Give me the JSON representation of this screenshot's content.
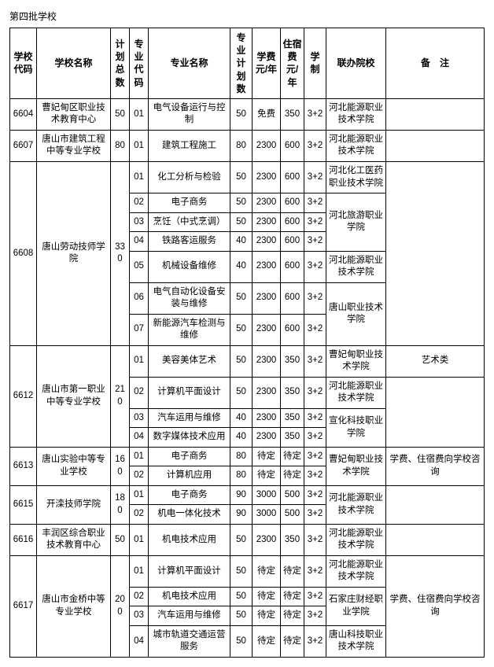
{
  "title": "第四批学校",
  "headers": {
    "code": "学校代码",
    "name": "学校名称",
    "totalPlan": "计划总数",
    "majorCode": "专业代码",
    "majorName": "专业名称",
    "majorPlan": "专业计划数",
    "tuition": "学费 元/年",
    "dorm": "住宿费 元/年",
    "system": "学制",
    "partner": "联办院校",
    "note": "备　注"
  },
  "schools": [
    {
      "code": "6604",
      "name": "曹妃甸区职业技术教育中心",
      "totalPlan": 50,
      "majors": [
        {
          "mcode": "01",
          "mname": "电气设备运行与控制",
          "mplan": 50,
          "fee": "免费",
          "dorm": 350,
          "sys": "3+2",
          "partner": "河北能源职业技术学院",
          "partnerSpan": 1
        }
      ],
      "note": ""
    },
    {
      "code": "6607",
      "name": "唐山市建筑工程中等专业学校",
      "totalPlan": 80,
      "majors": [
        {
          "mcode": "01",
          "mname": "建筑工程施工",
          "mplan": 80,
          "fee": 2300,
          "dorm": 600,
          "sys": "3+2",
          "partner": "河北能源职业技术学院",
          "partnerSpan": 1
        }
      ],
      "note": ""
    },
    {
      "code": "6608",
      "name": "唐山劳动技师学院",
      "totalPlan": 330,
      "majors": [
        {
          "mcode": "01",
          "mname": "化工分析与检验",
          "mplan": 50,
          "fee": 2300,
          "dorm": 600,
          "sys": "3+2",
          "partner": "河北化工医药职业技术学院",
          "partnerSpan": 1
        },
        {
          "mcode": "02",
          "mname": "电子商务",
          "mplan": 50,
          "fee": 2300,
          "dorm": 600,
          "sys": "3+2",
          "partner": "河北旅游职业学院",
          "partnerSpan": 3
        },
        {
          "mcode": "03",
          "mname": "烹饪（中式烹调）",
          "mplan": 50,
          "fee": 2300,
          "dorm": 600,
          "sys": "3+2"
        },
        {
          "mcode": "04",
          "mname": "铁路客运服务",
          "mplan": 40,
          "fee": 2300,
          "dorm": 600,
          "sys": "3+2"
        },
        {
          "mcode": "05",
          "mname": "机械设备维修",
          "mplan": 40,
          "fee": 2300,
          "dorm": 600,
          "sys": "3+2",
          "partner": "河北能源职业技术学院",
          "partnerSpan": 1
        },
        {
          "mcode": "06",
          "mname": "电气自动化设备安装与维修",
          "mplan": 50,
          "fee": 2300,
          "dorm": 600,
          "sys": "3+2",
          "partner": "唐山职业技术学院",
          "partnerSpan": 2
        },
        {
          "mcode": "07",
          "mname": "新能源汽车检测与维修",
          "mplan": 50,
          "fee": 2300,
          "dorm": 600,
          "sys": "3+2"
        }
      ],
      "note": ""
    },
    {
      "code": "6612",
      "name": "唐山市第一职业中等专业学校",
      "totalPlan": 210,
      "majors": [
        {
          "mcode": "01",
          "mname": "美容美体艺术",
          "mplan": 50,
          "fee": 2300,
          "dorm": 350,
          "sys": "3+2",
          "partner": "曹妃甸职业技术学院",
          "partnerSpan": 1,
          "note": "艺术类",
          "noteSpan": 1
        },
        {
          "mcode": "02",
          "mname": "计算机平面设计",
          "mplan": 50,
          "fee": 2300,
          "dorm": 350,
          "sys": "3+2",
          "partner": "河北能源职业技术学院",
          "partnerSpan": 1,
          "note": "",
          "noteSpan": 3
        },
        {
          "mcode": "03",
          "mname": "汽车运用与维修",
          "mplan": 40,
          "fee": 2300,
          "dorm": 350,
          "sys": "3+2",
          "partner": "宣化科技职业学院",
          "partnerSpan": 2
        },
        {
          "mcode": "04",
          "mname": "数字媒体技术应用",
          "mplan": 40,
          "fee": 2300,
          "dorm": 350,
          "sys": "3+2"
        }
      ]
    },
    {
      "code": "6613",
      "name": "唐山实验中等专业学校",
      "totalPlan": 160,
      "majors": [
        {
          "mcode": "01",
          "mname": "电子商务",
          "mplan": 80,
          "fee": "待定",
          "dorm": "待定",
          "sys": "3+2",
          "partner": "曹妃甸职业技术学院",
          "partnerSpan": 2
        },
        {
          "mcode": "02",
          "mname": "计算机应用",
          "mplan": 80,
          "fee": "待定",
          "dorm": "待定",
          "sys": "3+2"
        }
      ],
      "note": "学费、住宿费向学校咨询"
    },
    {
      "code": "6615",
      "name": "开滦技师学院",
      "totalPlan": 180,
      "majors": [
        {
          "mcode": "01",
          "mname": "电子商务",
          "mplan": 90,
          "fee": 3000,
          "dorm": 500,
          "sys": "3+2",
          "partner": "河北能源职业技术学院",
          "partnerSpan": 2
        },
        {
          "mcode": "02",
          "mname": "机电一体化技术",
          "mplan": 90,
          "fee": 3000,
          "dorm": 500,
          "sys": "3+2"
        }
      ],
      "note": ""
    },
    {
      "code": "6616",
      "name": "丰润区综合职业技术教育中心",
      "totalPlan": 50,
      "majors": [
        {
          "mcode": "01",
          "mname": "机电技术应用",
          "mplan": 50,
          "fee": 2300,
          "dorm": 350,
          "sys": "3+2",
          "partner": "河北能源职业技术学院",
          "partnerSpan": 1
        }
      ],
      "note": ""
    },
    {
      "code": "6617",
      "name": "唐山市金桥中等专业学校",
      "totalPlan": 200,
      "majors": [
        {
          "mcode": "01",
          "mname": "计算机平面设计",
          "mplan": 50,
          "fee": "待定",
          "dorm": "待定",
          "sys": "3+2",
          "partner": "河北能源职业技术学院",
          "partnerSpan": 1
        },
        {
          "mcode": "02",
          "mname": "机电技术应用",
          "mplan": 50,
          "fee": "待定",
          "dorm": "待定",
          "sys": "3+2",
          "partner": "石家庄财经职业学院",
          "partnerSpan": 2
        },
        {
          "mcode": "03",
          "mname": "汽车运用与维修",
          "mplan": 50,
          "fee": "待定",
          "dorm": "待定",
          "sys": "3+2"
        },
        {
          "mcode": "04",
          "mname": "城市轨道交通运营服务",
          "mplan": 50,
          "fee": "待定",
          "dorm": "待定",
          "sys": "3+2",
          "partner": "唐山科技职业技术学院",
          "partnerSpan": 1
        }
      ],
      "note": "学费、住宿费向学校咨询"
    }
  ]
}
